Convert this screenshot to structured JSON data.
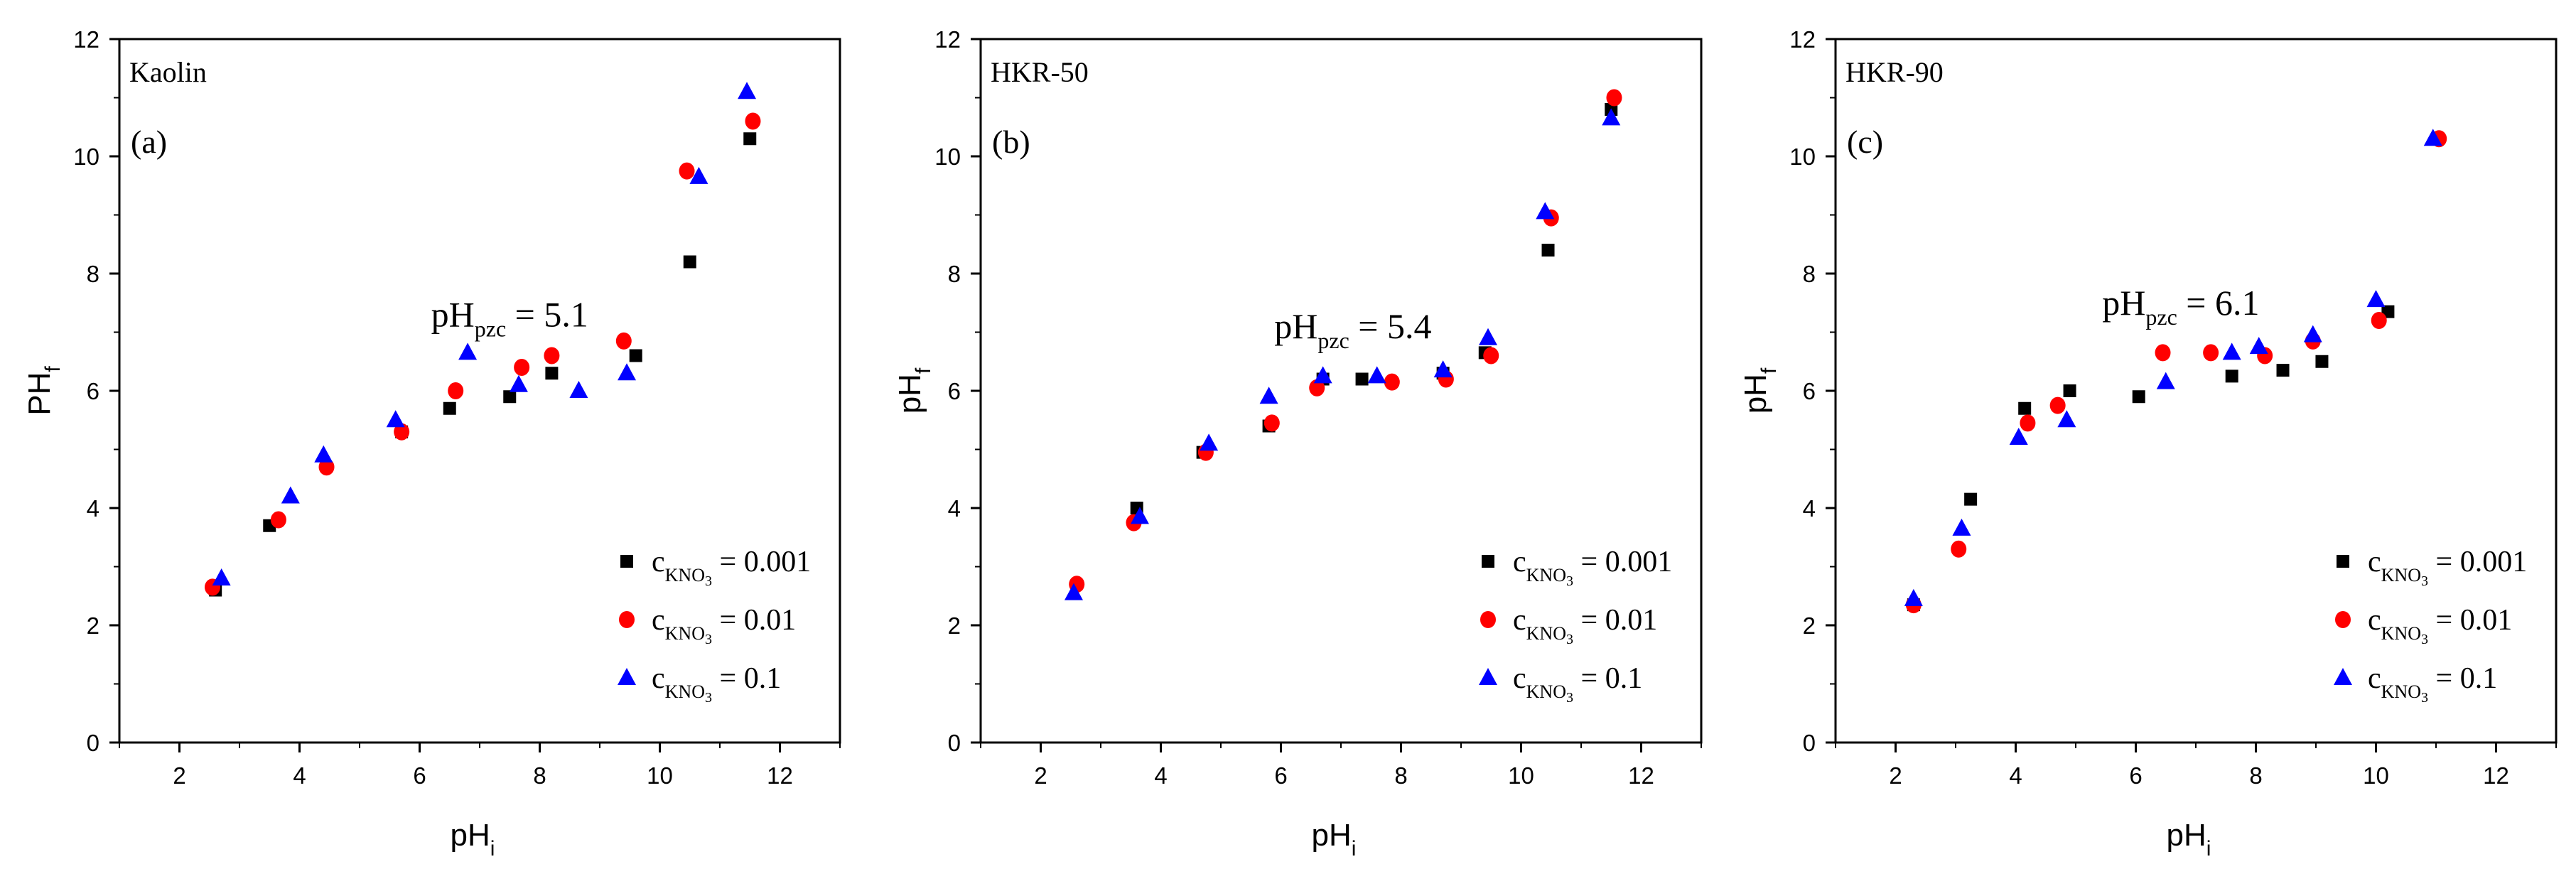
{
  "chart_data": [
    {
      "type": "scatter",
      "panel_title": "Kaolin",
      "panel_letter": "(a)",
      "xlabel": "pH",
      "xlabel_sub": "i",
      "ylabel": "PH",
      "ylabel_sub": "f",
      "xlim": [
        1,
        13
      ],
      "ylim": [
        0,
        12
      ],
      "xticks": [
        2,
        4,
        6,
        8,
        10,
        12
      ],
      "yticks": [
        0,
        2,
        4,
        6,
        8,
        10,
        12
      ],
      "annotation": {
        "main": "pH",
        "sub": "pzc",
        "suffix": " = 5.1",
        "x": 7.5,
        "y": 7.1
      },
      "legend": {
        "prefix": "c",
        "sub": "KNO",
        "subsub": "3",
        "location": "bottom-right"
      },
      "series": [
        {
          "name": "0.001",
          "marker": "square",
          "color": "#000000",
          "x": [
            2.6,
            3.5,
            5.7,
            6.5,
            7.5,
            8.2,
            9.6,
            10.5,
            11.5
          ],
          "y": [
            2.6,
            3.7,
            5.3,
            5.7,
            5.9,
            6.3,
            6.6,
            8.2,
            10.3
          ]
        },
        {
          "name": "0.01",
          "marker": "circle",
          "color": "#ff0000",
          "x": [
            2.55,
            3.65,
            4.45,
            5.7,
            6.6,
            7.7,
            8.2,
            9.4,
            10.45,
            11.55
          ],
          "y": [
            2.65,
            3.8,
            4.7,
            5.3,
            6.0,
            6.4,
            6.6,
            6.85,
            9.75,
            10.6
          ]
        },
        {
          "name": "0.1",
          "marker": "triangle",
          "color": "#0000ff",
          "x": [
            2.7,
            3.85,
            4.4,
            5.6,
            6.8,
            7.65,
            8.65,
            9.45,
            10.65,
            11.45
          ],
          "y": [
            2.8,
            4.2,
            4.9,
            5.5,
            6.65,
            6.1,
            6.0,
            6.3,
            9.65,
            11.1
          ]
        }
      ]
    },
    {
      "type": "scatter",
      "panel_title": "HKR-50",
      "panel_letter": "(b)",
      "xlabel": "pH",
      "xlabel_sub": "i",
      "ylabel": "pH",
      "ylabel_sub": "f",
      "xlim": [
        1,
        13
      ],
      "ylim": [
        0,
        12
      ],
      "xticks": [
        2,
        4,
        6,
        8,
        10,
        12
      ],
      "yticks": [
        0,
        2,
        4,
        6,
        8,
        10,
        12
      ],
      "annotation": {
        "main": "pH",
        "sub": "pzc",
        "suffix": " = 5.4",
        "x": 7.2,
        "y": 6.9
      },
      "legend": {
        "prefix": "c",
        "sub": "KNO",
        "subsub": "3",
        "location": "bottom-right"
      },
      "series": [
        {
          "name": "0.001",
          "marker": "square",
          "color": "#000000",
          "x": [
            3.6,
            4.7,
            5.8,
            6.7,
            7.35,
            8.7,
            9.4,
            10.45,
            11.5
          ],
          "y": [
            4.0,
            4.95,
            5.4,
            6.2,
            6.2,
            6.3,
            6.65,
            8.4,
            10.8
          ]
        },
        {
          "name": "0.01",
          "marker": "circle",
          "color": "#ff0000",
          "x": [
            2.6,
            3.55,
            4.75,
            5.85,
            6.6,
            7.85,
            8.75,
            9.5,
            10.5,
            11.55
          ],
          "y": [
            2.7,
            3.75,
            4.95,
            5.45,
            6.05,
            6.15,
            6.2,
            6.6,
            8.95,
            11.0
          ]
        },
        {
          "name": "0.1",
          "marker": "triangle",
          "color": "#0000ff",
          "x": [
            2.55,
            3.65,
            4.8,
            5.8,
            6.7,
            7.6,
            8.7,
            9.45,
            10.4,
            11.5
          ],
          "y": [
            2.55,
            3.85,
            5.1,
            5.9,
            6.25,
            6.25,
            6.35,
            6.9,
            9.05,
            10.65
          ]
        }
      ]
    },
    {
      "type": "scatter",
      "panel_title": "HKR-90",
      "panel_letter": "(c)",
      "xlabel": "pH",
      "xlabel_sub": "i",
      "ylabel": "pH",
      "ylabel_sub": "f",
      "xlim": [
        1,
        13
      ],
      "ylim": [
        0,
        12
      ],
      "xticks": [
        2,
        4,
        6,
        8,
        10,
        12
      ],
      "yticks": [
        0,
        2,
        4,
        6,
        8,
        10,
        12
      ],
      "annotation": {
        "main": "pH",
        "sub": "pzc",
        "suffix": " = 6.1",
        "x": 6.75,
        "y": 7.3
      },
      "legend": {
        "prefix": "c",
        "sub": "KNO",
        "subsub": "3",
        "location": "bottom-right"
      },
      "series": [
        {
          "name": "0.001",
          "marker": "square",
          "color": "#000000",
          "x": [
            2.3,
            3.25,
            4.15,
            4.9,
            6.05,
            7.6,
            8.45,
            9.1,
            10.2
          ],
          "y": [
            2.35,
            4.15,
            5.7,
            6.0,
            5.9,
            6.25,
            6.35,
            6.5,
            7.35
          ]
        },
        {
          "name": "0.01",
          "marker": "circle",
          "color": "#ff0000",
          "x": [
            2.3,
            3.05,
            4.2,
            4.7,
            6.45,
            7.25,
            8.15,
            8.95,
            10.05,
            11.05
          ],
          "y": [
            2.35,
            3.3,
            5.45,
            5.75,
            6.65,
            6.65,
            6.6,
            6.85,
            7.2,
            10.3
          ]
        },
        {
          "name": "0.1",
          "marker": "triangle",
          "color": "#0000ff",
          "x": [
            2.3,
            3.1,
            4.05,
            4.85,
            6.5,
            7.6,
            8.05,
            8.95,
            10.0,
            10.95
          ],
          "y": [
            2.45,
            3.65,
            5.2,
            5.5,
            6.15,
            6.65,
            6.75,
            6.95,
            7.55,
            10.3
          ]
        }
      ]
    }
  ]
}
